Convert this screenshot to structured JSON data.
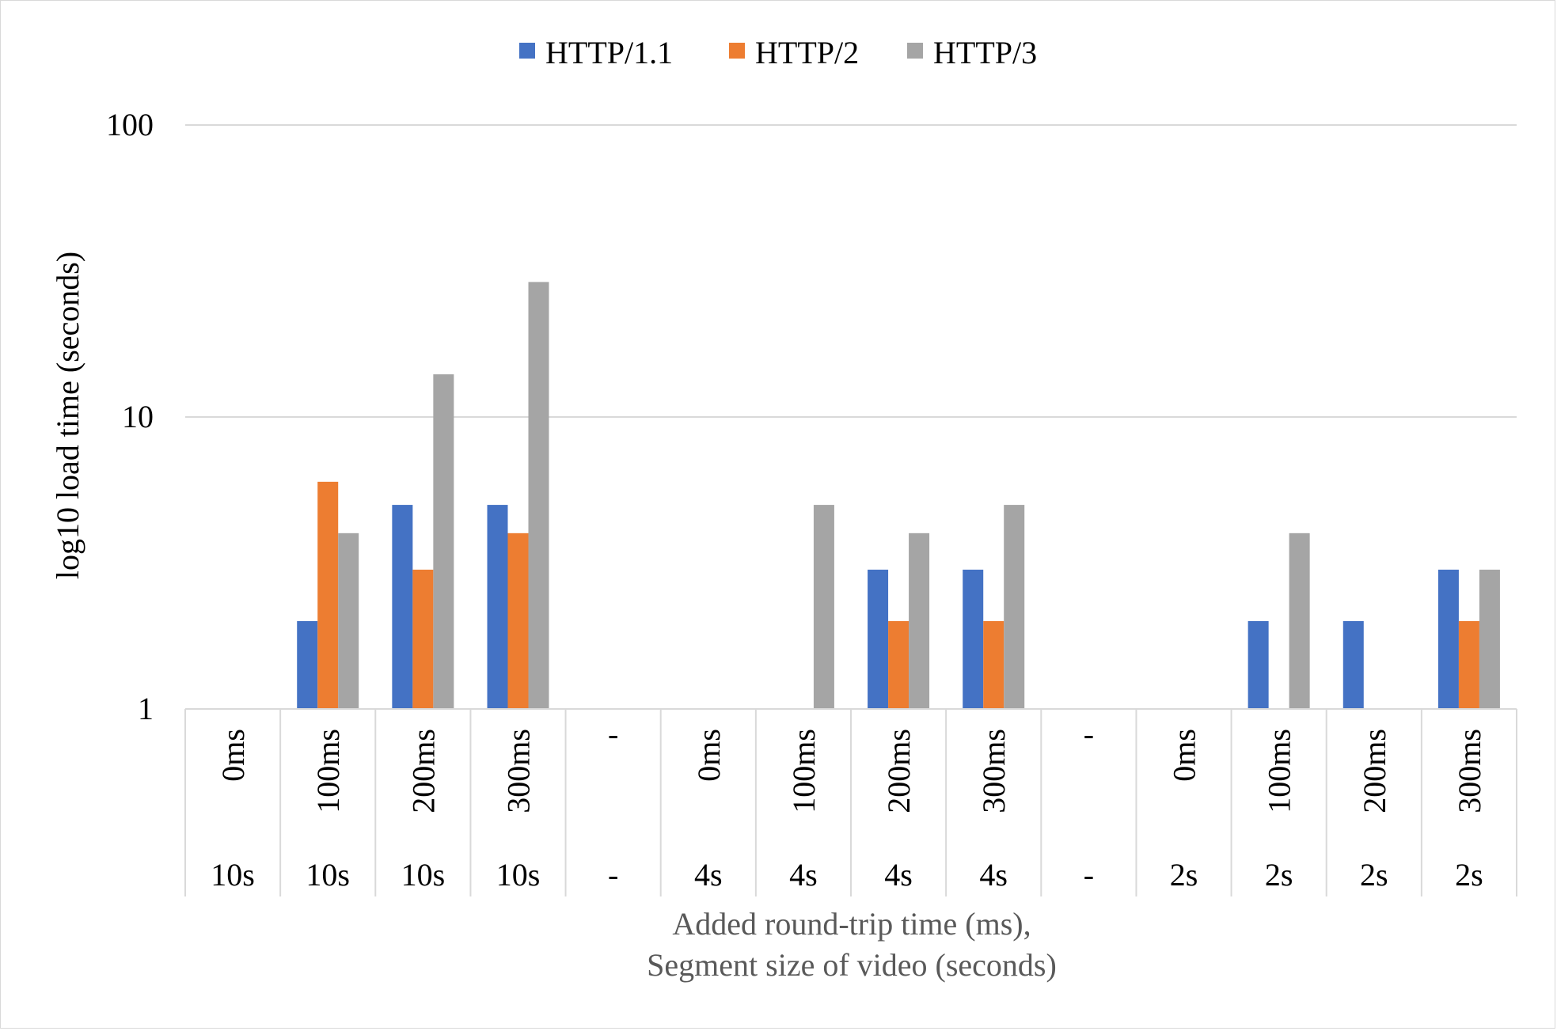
{
  "chart_data": {
    "type": "bar",
    "categories": [
      [
        "0ms",
        "10s"
      ],
      [
        "100ms",
        "10s"
      ],
      [
        "200ms",
        "10s"
      ],
      [
        "300ms",
        "10s"
      ],
      [
        "-",
        "-"
      ],
      [
        "0ms",
        "4s"
      ],
      [
        "100ms",
        "4s"
      ],
      [
        "200ms",
        "4s"
      ],
      [
        "300ms",
        "4s"
      ],
      [
        "-",
        "-"
      ],
      [
        "0ms",
        "2s"
      ],
      [
        "100ms",
        "2s"
      ],
      [
        "200ms",
        "2s"
      ],
      [
        "300ms",
        "2s"
      ]
    ],
    "series": [
      {
        "name": "HTTP/1.1",
        "color": "#4472c4",
        "values": [
          null,
          2,
          5,
          5,
          null,
          null,
          null,
          3,
          3,
          null,
          null,
          2,
          2,
          3
        ]
      },
      {
        "name": "HTTP/2",
        "color": "#ed7d31",
        "values": [
          null,
          6,
          3,
          4,
          null,
          null,
          null,
          2,
          2,
          null,
          null,
          null,
          null,
          2
        ]
      },
      {
        "name": "HTTP/3",
        "color": "#a5a5a5",
        "values": [
          null,
          4,
          14,
          29,
          null,
          null,
          5,
          4,
          5,
          null,
          null,
          4,
          null,
          3
        ]
      }
    ],
    "ylabel": "log10 load time (seconds)",
    "xlabel_lines": [
      "Added round-trip time (ms),",
      "Segment size of video (seconds)"
    ],
    "yscale": "log",
    "ylim": [
      1,
      100
    ],
    "yticks": [
      {
        "value": 1,
        "label": "1"
      },
      {
        "value": 10,
        "label": "10"
      },
      {
        "value": 100,
        "label": "100"
      }
    ],
    "grid": true,
    "legend_position": "top"
  }
}
